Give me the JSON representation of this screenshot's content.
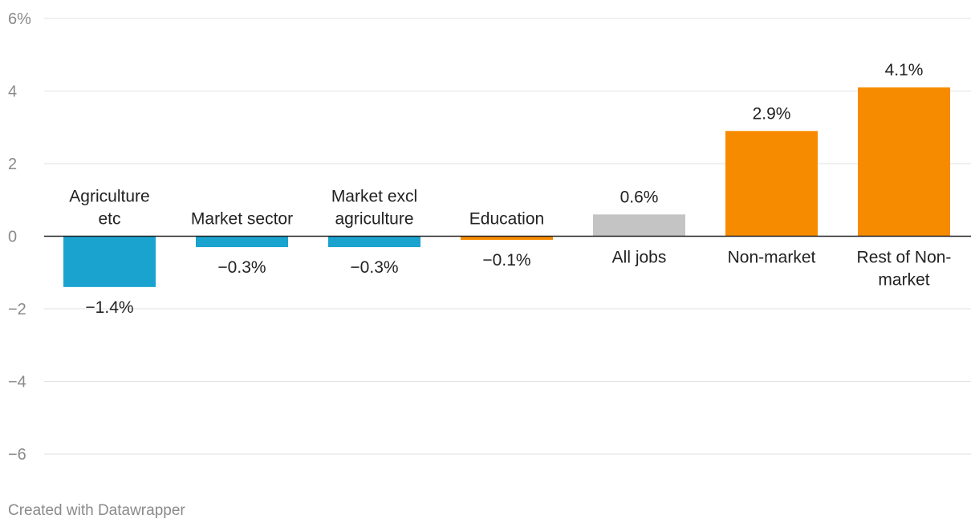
{
  "chart_data": {
    "type": "bar",
    "categories": [
      [
        "Agriculture",
        "etc"
      ],
      [
        "Market sector"
      ],
      [
        "Market excl",
        "agriculture"
      ],
      [
        "Education"
      ],
      [
        "All jobs"
      ],
      [
        "Non-market"
      ],
      [
        "Rest of Non-",
        "market"
      ]
    ],
    "values": [
      -1.4,
      -0.3,
      -0.3,
      -0.1,
      0.6,
      2.9,
      4.1
    ],
    "value_labels": [
      "−1.4%",
      "−0.3%",
      "−0.3%",
      "−0.1%",
      "0.6%",
      "2.9%",
      "4.1%"
    ],
    "colors": [
      "#1aa3cf",
      "#1aa3cf",
      "#1aa3cf",
      "#f78b00",
      "#c4c4c4",
      "#f78b00",
      "#f78b00"
    ],
    "yticks": [
      6,
      4,
      2,
      0,
      -2,
      -4,
      -6
    ],
    "ytick_labels": [
      "6%",
      "4",
      "2",
      "0",
      "−2",
      "−4",
      "−6"
    ],
    "ylim": [
      -6,
      6
    ],
    "grid": true,
    "title": "",
    "xlabel": "",
    "ylabel": ""
  },
  "footer": {
    "credit": "Created with Datawrapper"
  }
}
